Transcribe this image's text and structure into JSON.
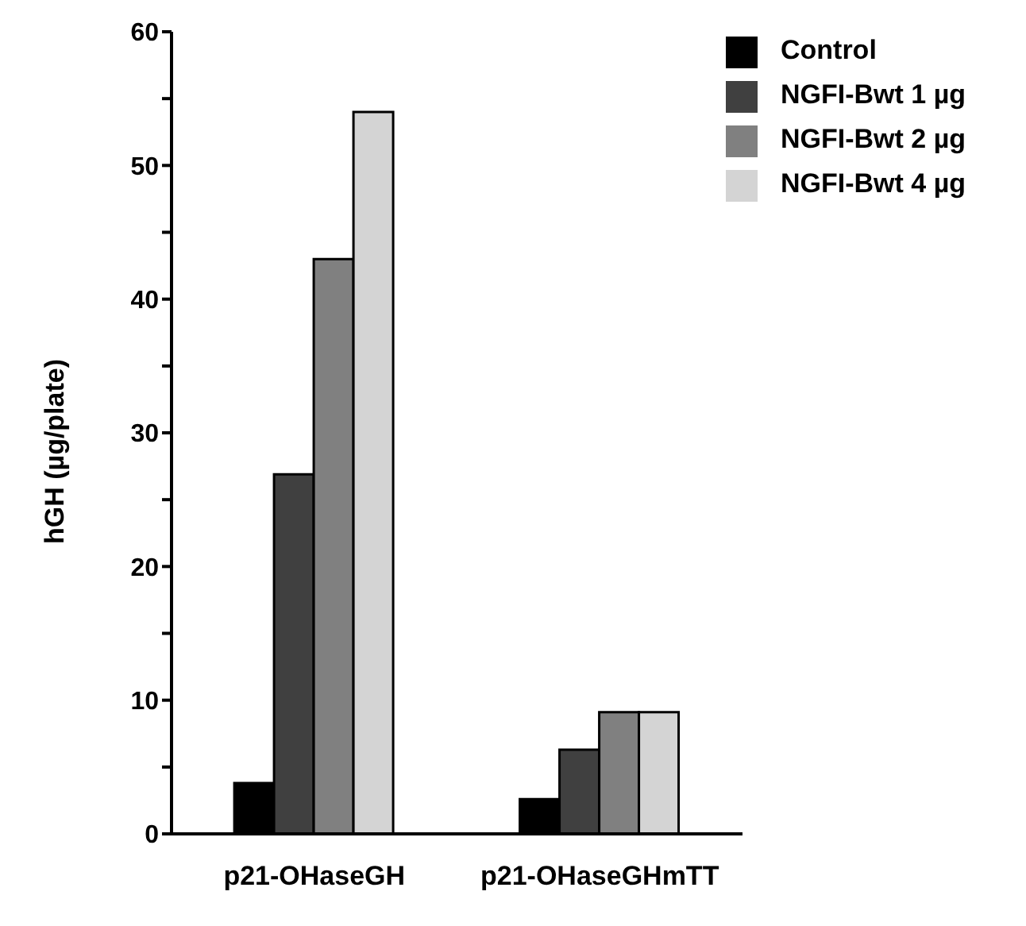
{
  "chart_data": {
    "type": "bar",
    "ylabel": "hGH  (µg/plate)",
    "categories": [
      "p21-OHaseGH",
      "p21-OHaseGHmTT"
    ],
    "series": [
      {
        "name": "Control",
        "color": "#000000",
        "values": [
          3.8,
          2.6
        ]
      },
      {
        "name": "NGFI-Bwt 1 µg",
        "color": "#404040",
        "values": [
          26.9,
          6.3
        ]
      },
      {
        "name": "NGFI-Bwt 2 µg",
        "color": "#808080",
        "values": [
          43,
          9.1
        ]
      },
      {
        "name": "NGFI-Bwt 4 µg",
        "color": "#d4d4d4",
        "values": [
          54,
          9.1
        ]
      }
    ],
    "ylim": [
      0,
      60
    ],
    "yticks": [
      0,
      {
        "value": 5,
        "label": null
      },
      10,
      {
        "value": 15,
        "label": null
      },
      20,
      {
        "value": 25,
        "label": null
      },
      30,
      {
        "value": 35,
        "label": null
      },
      40,
      {
        "value": 45,
        "label": null
      },
      50,
      {
        "value": 55,
        "label": null
      },
      60
    ],
    "legend": "top right",
    "grid": false
  }
}
